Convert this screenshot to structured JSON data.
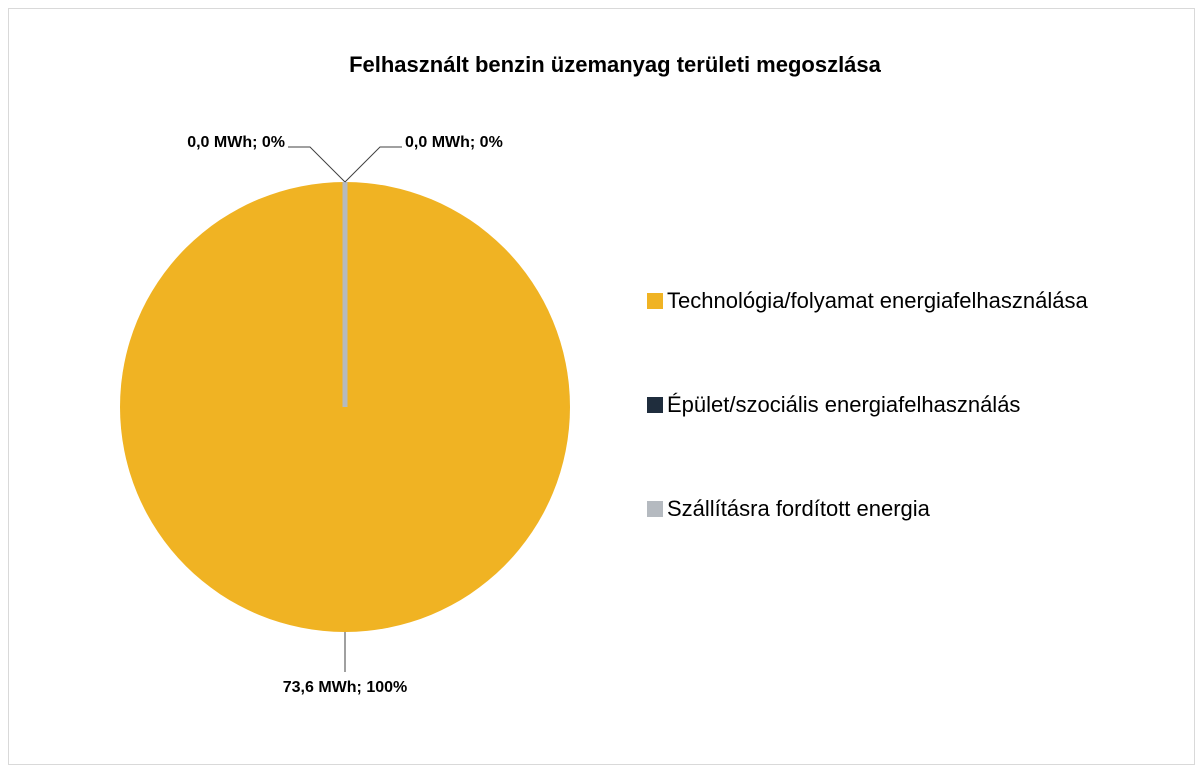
{
  "chart_data": {
    "type": "pie",
    "title": "Felhasznált benzin üzemanyag területi megoszlása",
    "categories": [
      "Technológia/folyamat energiafelhasználása",
      "Épület/szociális energiafelhasználás",
      "Szállításra fordított energia"
    ],
    "values": [
      73.6,
      0,
      0
    ],
    "value_labels": [
      "73,6 MWh; 100%",
      "0,0 MWh; 0%",
      "0,0 MWh; 0%"
    ],
    "colors": [
      "#F0B323",
      "#1F2D3D",
      "#B5BAC0"
    ],
    "legend": "right"
  }
}
